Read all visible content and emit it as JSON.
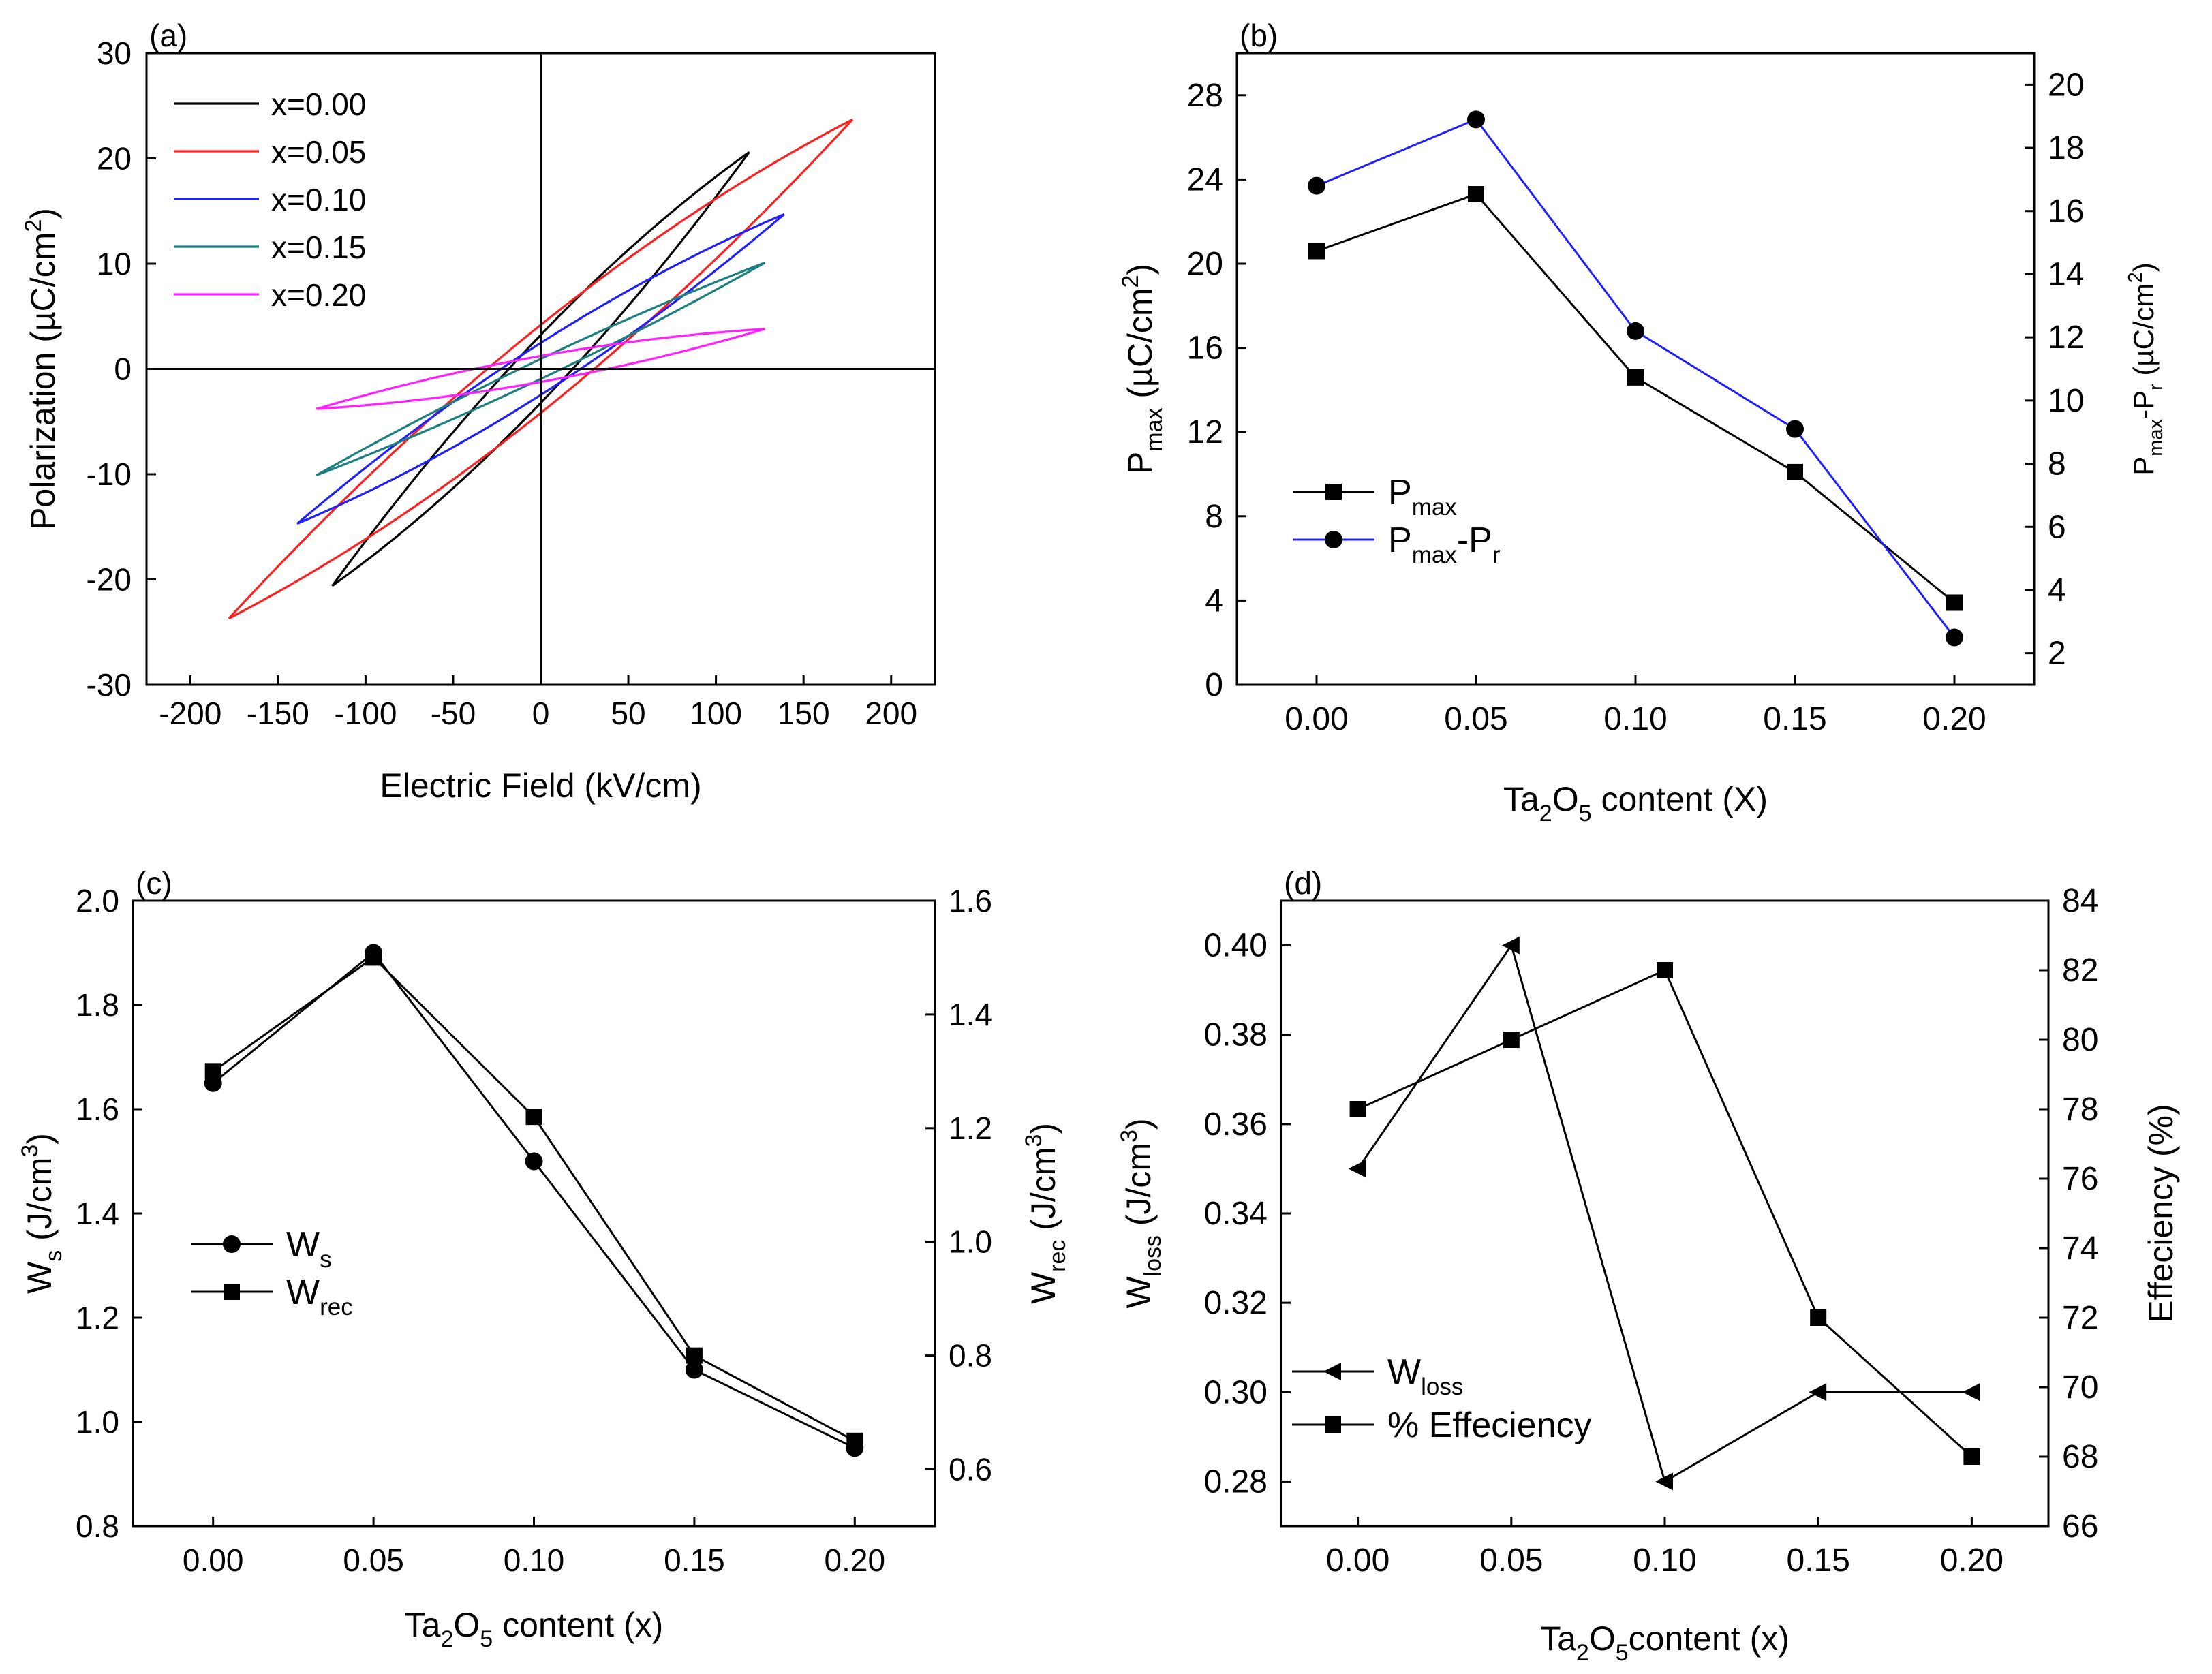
{
  "chart_data": [
    {
      "panel": "(a)",
      "type": "line",
      "subtype": "hysteresis-loops",
      "xlabel": "Electric Field (kV/cm)",
      "ylabel": "Polarization (µC/cm²)",
      "ylabel_parts": {
        "main": "Polarization (µC/cm",
        "sup": "2",
        "close": ")"
      },
      "xlim": [
        -225,
        225
      ],
      "ylim": [
        -30,
        30
      ],
      "xticks": [
        -200,
        -150,
        -100,
        -50,
        0,
        50,
        100,
        150,
        200
      ],
      "yticks": [
        -30,
        -20,
        -10,
        0,
        10,
        20,
        30
      ],
      "legend_position": "top-left",
      "series": [
        {
          "name": "x=0.00",
          "color": "#000000",
          "emax": 119,
          "pmax": 20.6,
          "pr": 3.4
        },
        {
          "name": "x=0.05",
          "color": "#ff1f1f",
          "emax": 178,
          "pmax": 23.7,
          "pr": 4.4
        },
        {
          "name": "x=0.10",
          "color": "#1f1fff",
          "emax": 139,
          "pmax": 14.7,
          "pr": 2.6
        },
        {
          "name": "x=0.15",
          "color": "#1a8080",
          "emax": 128,
          "pmax": 10.1,
          "pr": 1.0
        },
        {
          "name": "x=0.20",
          "color": "#ff1fff",
          "emax": 128,
          "pmax": 3.8,
          "pr": 1.3
        }
      ]
    },
    {
      "panel": "(b)",
      "type": "line",
      "xlabel": "Ta₂O₅ content (X)",
      "xlabel_parts": {
        "a": "Ta",
        "s1": "2",
        "b": "O",
        "s2": "5",
        "c": " content (X)"
      },
      "ylabel_left_parts": {
        "p": "P",
        "sub": "max",
        "rest": " (µC/cm",
        "sup": "2",
        "close": ")"
      },
      "ylabel_right_parts": {
        "p": "P",
        "sub1": "max",
        "mid": "-P",
        "sub2": "r",
        "rest": " (µC/cm",
        "sup": "2",
        "close": ")"
      },
      "x": [
        0.0,
        0.05,
        0.1,
        0.15,
        0.2
      ],
      "xticks": [
        "0.00",
        "0.05",
        "0.10",
        "0.15",
        "0.20"
      ],
      "xlim": [
        -0.025,
        0.225
      ],
      "ylim_left": [
        0,
        30
      ],
      "yticks_left": [
        0,
        4,
        8,
        12,
        16,
        20,
        24,
        28
      ],
      "ylim_right": [
        1,
        21
      ],
      "yticks_right": [
        2,
        4,
        6,
        8,
        10,
        12,
        14,
        16,
        18,
        20
      ],
      "legend_position": "middle-left",
      "series": [
        {
          "name": "Pmax",
          "label_main": "P",
          "label_sub": "max",
          "axis": "left",
          "color": "#000000",
          "marker": "square",
          "values": [
            20.6,
            23.3,
            14.6,
            10.1,
            3.9
          ]
        },
        {
          "name": "Pmax-Pr",
          "label_main": "P",
          "label_sub": "max",
          "label_mid": "-P",
          "label_sub2": "r",
          "axis": "right",
          "color": "#1f1fff",
          "line_color": "#1f1fff",
          "marker": "circle",
          "values": [
            16.8,
            18.9,
            12.2,
            9.1,
            2.5
          ]
        }
      ]
    },
    {
      "panel": "(c)",
      "type": "line",
      "xlabel": "Ta₂O₅ content (x)",
      "xlabel_parts": {
        "a": "Ta",
        "s1": "2",
        "b": "O",
        "s2": "5",
        "c": " content (x)"
      },
      "ylabel_left_parts": {
        "p": "W",
        "sub": "s",
        "rest": " (J/cm",
        "sup": "3",
        "close": ")"
      },
      "ylabel_right_parts": {
        "p": "W",
        "sub": "rec",
        "rest": " (J/cm",
        "sup": "3",
        "close": ")"
      },
      "x": [
        0.0,
        0.05,
        0.1,
        0.15,
        0.2
      ],
      "xticks": [
        "0.00",
        "0.05",
        "0.10",
        "0.15",
        "0.20"
      ],
      "xlim": [
        -0.025,
        0.225
      ],
      "ylim_left": [
        0.8,
        2.0
      ],
      "yticks_left": [
        "0.8",
        "1.0",
        "1.2",
        "1.4",
        "1.6",
        "1.8",
        "2.0"
      ],
      "ylim_right": [
        0.5,
        1.6
      ],
      "yticks_right": [
        "0.6",
        "0.8",
        "1.0",
        "1.2",
        "1.4",
        "1.6"
      ],
      "legend_position": "bottom-left",
      "series": [
        {
          "name": "Ws",
          "label_main": "W",
          "label_sub": "s",
          "axis": "left",
          "color": "#000000",
          "marker": "circle",
          "values": [
            1.65,
            1.9,
            1.5,
            1.1,
            0.95
          ]
        },
        {
          "name": "Wrec",
          "label_main": "W",
          "label_sub": "rec",
          "axis": "right",
          "color": "#000000",
          "marker": "square",
          "values": [
            1.3,
            1.5,
            1.22,
            0.8,
            0.65
          ]
        }
      ]
    },
    {
      "panel": "(d)",
      "type": "line",
      "xlabel": "Ta₂O₅content (x)",
      "xlabel_parts": {
        "a": "Ta",
        "s1": "2",
        "b": "O",
        "s2": "5",
        "c": "content (x)"
      },
      "ylabel_left_parts": {
        "p": "W",
        "sub": "loss",
        "rest": " (J/cm",
        "sup": "3",
        "close": ")"
      },
      "ylabel_right": "Effeciency (%)",
      "x": [
        0.0,
        0.05,
        0.1,
        0.15,
        0.2
      ],
      "xticks": [
        "0.00",
        "0.05",
        "0.10",
        "0.15",
        "0.20"
      ],
      "xlim": [
        -0.025,
        0.225
      ],
      "ylim_left": [
        0.27,
        0.41
      ],
      "yticks_left": [
        "0.28",
        "0.30",
        "0.32",
        "0.34",
        "0.36",
        "0.38",
        "0.40"
      ],
      "ylim_right": [
        66,
        84
      ],
      "yticks_right": [
        66,
        68,
        70,
        72,
        74,
        76,
        78,
        80,
        82,
        84
      ],
      "legend_position": "bottom-left",
      "series": [
        {
          "name": "Wloss",
          "label_main": "W",
          "label_sub": "loss",
          "axis": "left",
          "color": "#000000",
          "marker": "triangle-left",
          "values": [
            0.35,
            0.4,
            0.28,
            0.3,
            0.3
          ]
        },
        {
          "name": "% Effeciency",
          "label_main": "% Effeciency",
          "axis": "right",
          "color": "#000000",
          "marker": "square",
          "values": [
            78,
            80,
            82,
            72,
            68
          ]
        }
      ]
    }
  ]
}
